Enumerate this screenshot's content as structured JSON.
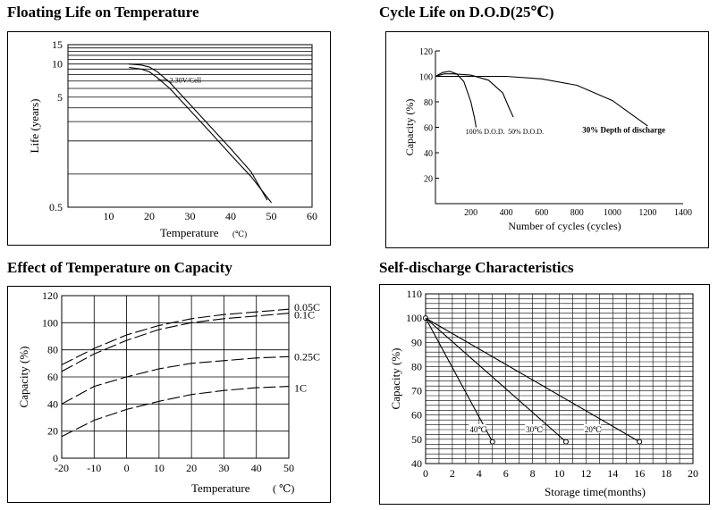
{
  "chart_data": [
    {
      "type": "line",
      "title": "Floating Life on Temperature",
      "xlabel": "Temperature",
      "xunit": "(℃)",
      "ylabel": "Life (years)",
      "yscale": "log",
      "xlim": [
        0,
        60
      ],
      "ylim": [
        0.5,
        15
      ],
      "xticks": [
        10,
        20,
        30,
        40,
        50,
        60
      ],
      "yticklabels": [
        "0.5",
        "5",
        "10",
        "15"
      ],
      "yticks": [
        0.5,
        5,
        10,
        15
      ],
      "grid_y": [
        0.5,
        1,
        2,
        3,
        4,
        5,
        6,
        7,
        8,
        9,
        10,
        11,
        12,
        13,
        14,
        15
      ],
      "series": [
        {
          "name": "",
          "x": [
            15,
            18,
            20,
            22,
            25,
            30,
            35,
            40,
            45,
            49
          ],
          "y": [
            10,
            9.8,
            9.4,
            8.5,
            6.8,
            4.3,
            2.7,
            1.7,
            1.05,
            0.58
          ]
        },
        {
          "name": "",
          "x": [
            15,
            18,
            20,
            22,
            25,
            30,
            35,
            40,
            45,
            50
          ],
          "y": [
            9.3,
            9.0,
            8.5,
            7.5,
            6.0,
            3.8,
            2.4,
            1.5,
            0.95,
            0.55
          ]
        }
      ],
      "annotations": [
        {
          "text": "2.30V/Cell",
          "x": 25,
          "y": 7.2
        }
      ]
    },
    {
      "type": "line",
      "title": "Cycle Life on D.O.D(25℃)",
      "xlabel": "Number of cycles (cycles)",
      "ylabel": "Capacity (%)",
      "xlim": [
        0,
        1400
      ],
      "ylim": [
        0,
        120
      ],
      "xticks": [
        200,
        400,
        600,
        800,
        1000,
        1200,
        1400
      ],
      "yticks": [
        20,
        40,
        60,
        80,
        100,
        120
      ],
      "series": [
        {
          "name": "100% D.O.D.",
          "x": [
            0,
            40,
            80,
            120,
            160,
            200,
            220,
            230
          ],
          "y": [
            100,
            103,
            104,
            102,
            96,
            80,
            68,
            60
          ]
        },
        {
          "name": "50% D.O.D.",
          "x": [
            0,
            50,
            100,
            200,
            300,
            380,
            420,
            440
          ],
          "y": [
            100,
            102,
            102,
            101,
            97,
            87,
            74,
            68
          ]
        },
        {
          "name": "30% Depth of discharge",
          "x": [
            0,
            200,
            400,
            600,
            800,
            1000,
            1200
          ],
          "y": [
            100,
            100,
            100,
            98,
            93,
            81,
            61
          ]
        }
      ],
      "annotations": [
        {
          "text": "100% D.O.D.",
          "x": 170,
          "y": 57
        },
        {
          "text": "50% D.O.D.",
          "x": 410,
          "y": 57
        },
        {
          "text": "30% Depth of  discharge",
          "x": 830,
          "y": 58
        }
      ]
    },
    {
      "type": "line",
      "title": "Effect of Temperature on Capacity",
      "xlabel": "Temperature",
      "xunit": "( ℃)",
      "ylabel": "Capacity (%)",
      "xlim": [
        -20,
        50
      ],
      "ylim": [
        0,
        120
      ],
      "xticks": [
        -20,
        -10,
        0,
        10,
        20,
        30,
        40,
        50
      ],
      "yticks": [
        0,
        20,
        40,
        60,
        80,
        100,
        120
      ],
      "series": [
        {
          "name": "0.05C",
          "x": [
            -20,
            -10,
            0,
            10,
            20,
            30,
            40,
            50
          ],
          "y": [
            69,
            81,
            91,
            98,
            103,
            106,
            108,
            110
          ]
        },
        {
          "name": "0.1C",
          "x": [
            -20,
            -10,
            0,
            10,
            20,
            30,
            40,
            50
          ],
          "y": [
            64,
            77,
            87,
            95,
            100,
            103,
            105,
            107
          ]
        },
        {
          "name": "0.25C",
          "x": [
            -20,
            -10,
            0,
            10,
            20,
            30,
            40,
            50
          ],
          "y": [
            40,
            53,
            60,
            66,
            70,
            72,
            74,
            75
          ]
        },
        {
          "name": "1C",
          "x": [
            -20,
            -10,
            0,
            10,
            20,
            30,
            40,
            50
          ],
          "y": [
            16,
            28,
            36,
            42,
            47,
            50,
            52,
            53
          ]
        }
      ]
    },
    {
      "type": "line",
      "title": "Self-discharge Characteristics",
      "xlabel": "Storage time(months)",
      "ylabel": "Capacity (%)",
      "xlim": [
        0,
        20
      ],
      "ylim": [
        40,
        110
      ],
      "xticks": [
        0,
        2,
        4,
        6,
        8,
        10,
        12,
        14,
        16,
        18,
        20
      ],
      "yticks": [
        40,
        50,
        60,
        70,
        80,
        90,
        100,
        110
      ],
      "series": [
        {
          "name": "40℃",
          "x": [
            0,
            5
          ],
          "y": [
            100,
            49
          ]
        },
        {
          "name": "30℃",
          "x": [
            0,
            10.5
          ],
          "y": [
            100,
            49
          ]
        },
        {
          "name": "20℃",
          "x": [
            0,
            16
          ],
          "y": [
            100,
            49
          ]
        }
      ],
      "annotations": [
        {
          "text": "40℃",
          "x": 3.3,
          "y": 54
        },
        {
          "text": "30℃",
          "x": 7.5,
          "y": 54
        },
        {
          "text": "20℃",
          "x": 11.9,
          "y": 54
        }
      ]
    }
  ]
}
